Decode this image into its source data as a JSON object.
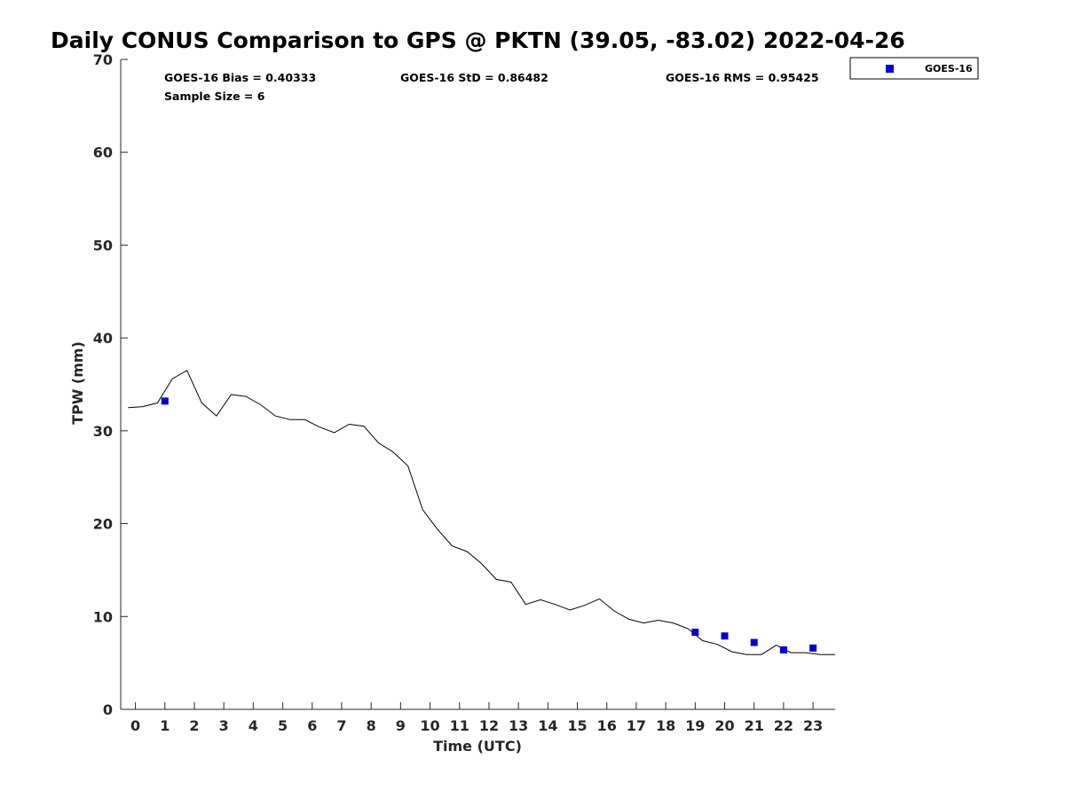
{
  "chart_data": {
    "type": "line",
    "title": "Daily CONUS Comparison to GPS @ PKTN (39.05, -83.02) 2022-04-26",
    "xlabel": "Time (UTC)",
    "ylabel": "TPW (mm)",
    "xlim": [
      -0.5,
      23.75
    ],
    "ylim": [
      0,
      70
    ],
    "x_ticks": [
      "0",
      "1",
      "2",
      "3",
      "4",
      "5",
      "6",
      "7",
      "8",
      "9",
      "10",
      "11",
      "12",
      "13",
      "14",
      "15",
      "16",
      "17",
      "18",
      "19",
      "20",
      "21",
      "22",
      "23"
    ],
    "y_ticks": [
      "0",
      "10",
      "20",
      "30",
      "40",
      "50",
      "60",
      "70"
    ],
    "grid": false,
    "legend_position": "top-right",
    "stats": {
      "bias": "GOES-16 Bias = 0.40333",
      "std": "GOES-16 StD = 0.86482",
      "rms": "GOES-16 RMS = 0.95425",
      "sample": "Sample Size = 6"
    },
    "series": [
      {
        "style": "line",
        "color": "#000000",
        "x": [
          -0.25,
          0.25,
          0.75,
          1.25,
          1.75,
          2.25,
          2.75,
          3.25,
          3.75,
          4.25,
          4.75,
          5.25,
          5.75,
          6.25,
          6.75,
          7.25,
          7.75,
          8.25,
          8.75,
          9.25,
          9.75,
          10.25,
          10.75,
          11.25,
          11.75,
          12.25,
          12.75,
          13.25,
          13.75,
          14.25,
          14.75,
          15.25,
          15.75,
          16.25,
          16.75,
          17.25,
          17.75,
          18.25,
          18.75,
          19.25,
          19.75,
          20.25,
          20.75,
          21.25,
          21.75,
          22.25,
          22.75,
          23.25,
          23.75
        ],
        "values": [
          32.5,
          32.6,
          33.0,
          35.6,
          36.5,
          33.0,
          31.6,
          33.9,
          33.7,
          32.8,
          31.6,
          31.2,
          31.2,
          30.4,
          29.8,
          30.7,
          30.5,
          28.7,
          27.7,
          26.2,
          21.5,
          19.4,
          17.6,
          17.0,
          15.7,
          14.0,
          13.7,
          11.3,
          11.8,
          11.3,
          10.7,
          11.2,
          11.9,
          10.6,
          9.7,
          9.3,
          9.6,
          9.3,
          8.7,
          7.4,
          7.0,
          6.2,
          5.9,
          5.9,
          6.9,
          6.1,
          6.1,
          5.9,
          5.9
        ]
      },
      {
        "name": "GOES-16",
        "style": "scatter",
        "marker": "square",
        "color": "#0000d0",
        "x": [
          1,
          19,
          20,
          21,
          22,
          23
        ],
        "values": [
          33.2,
          8.3,
          7.9,
          7.2,
          6.4,
          6.6
        ]
      }
    ]
  }
}
